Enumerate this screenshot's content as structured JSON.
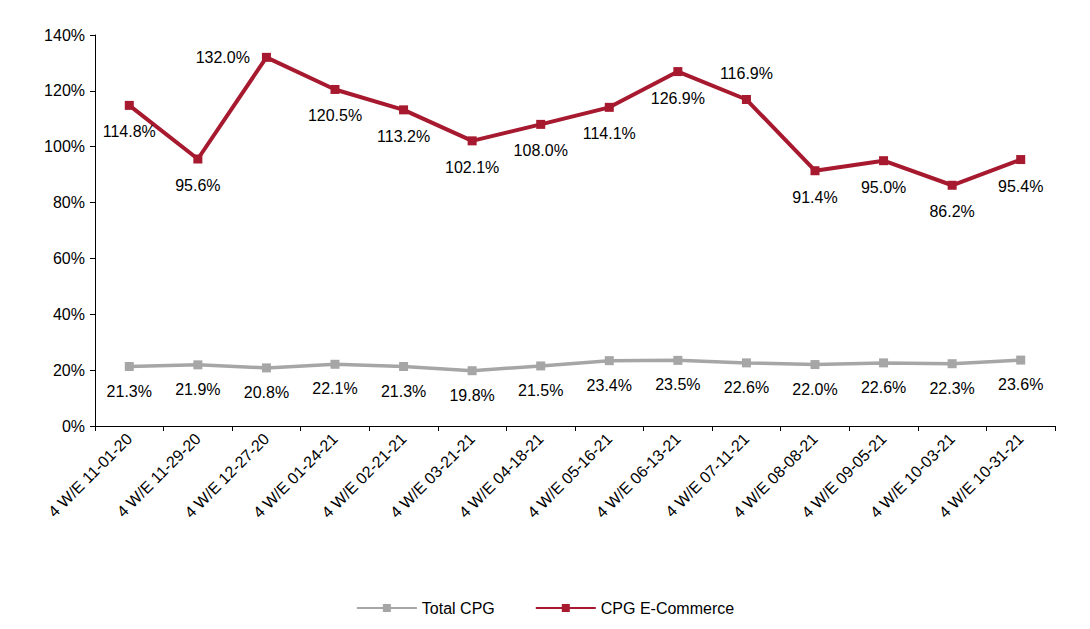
{
  "chart_data": {
    "type": "line",
    "categories": [
      "4 W/E 11-01-20",
      "4 W/E 11-29-20",
      "4 W/E 12-27-20",
      "4 W/E 01-24-21",
      "4 W/E 02-21-21",
      "4 W/E 03-21-21",
      "4 W/E 04-18-21",
      "4 W/E 05-16-21",
      "4 W/E 06-13-21",
      "4 W/E 07-11-21",
      "4 W/E 08-08-21",
      "4 W/E 09-05-21",
      "4 W/E 10-03-21",
      "4 W/E 10-31-21"
    ],
    "series": [
      {
        "name": "Total CPG",
        "color": "#a6a6a6",
        "values": [
          21.3,
          21.9,
          20.8,
          22.1,
          21.3,
          19.8,
          21.5,
          23.4,
          23.5,
          22.6,
          22.0,
          22.6,
          22.3,
          23.6
        ],
        "value_labels": [
          "21.3%",
          "21.9%",
          "20.8%",
          "22.1%",
          "21.3%",
          "19.8%",
          "21.5%",
          "23.4%",
          "23.5%",
          "22.6%",
          "22.0%",
          "22.6%",
          "22.3%",
          "23.6%"
        ]
      },
      {
        "name": "CPG E-Commerce",
        "color": "#a6192e",
        "values": [
          114.8,
          95.6,
          132.0,
          120.5,
          113.2,
          102.1,
          108.0,
          114.1,
          126.9,
          116.9,
          91.4,
          95.0,
          86.2,
          95.4
        ],
        "value_labels": [
          "114.8%",
          "95.6%",
          "132.0%",
          "120.5%",
          "113.2%",
          "102.1%",
          "108.0%",
          "114.1%",
          "126.9%",
          "116.9%",
          "91.4%",
          "95.0%",
          "86.2%",
          "95.4%"
        ]
      }
    ],
    "ylim": [
      0,
      140
    ],
    "yticks": [
      {
        "value": 0,
        "label": "0%"
      },
      {
        "value": 20,
        "label": "20%"
      },
      {
        "value": 40,
        "label": "40%"
      },
      {
        "value": 60,
        "label": "60%"
      },
      {
        "value": 80,
        "label": "80%"
      },
      {
        "value": 100,
        "label": "100%"
      },
      {
        "value": 120,
        "label": "120%"
      },
      {
        "value": 140,
        "label": "140%"
      }
    ],
    "grid": false,
    "legend": "bottom",
    "data_labels": true,
    "marker": "square"
  }
}
